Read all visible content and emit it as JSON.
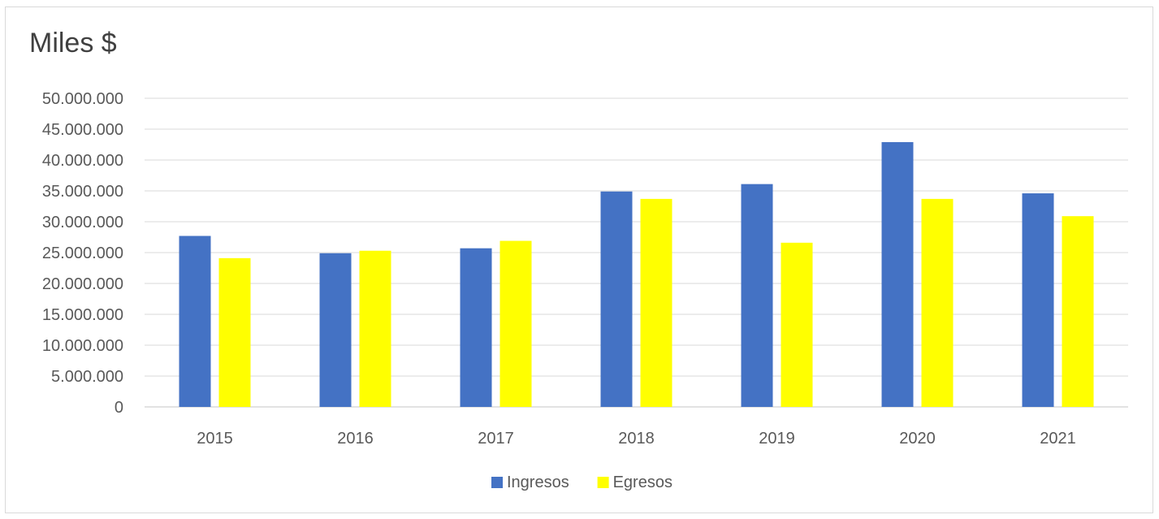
{
  "colors": {
    "ingresos": "#4472c4",
    "egresos": "#ffff00",
    "grid": "#d9d9d9",
    "text": "#595959"
  },
  "chart_data": {
    "type": "bar",
    "title": "Miles $",
    "categories": [
      "2015",
      "2016",
      "2017",
      "2018",
      "2019",
      "2020",
      "2021"
    ],
    "series": [
      {
        "name": "Ingresos",
        "color": "#4472c4",
        "values": [
          27700000,
          24900000,
          25700000,
          34900000,
          36100000,
          42900000,
          34600000
        ]
      },
      {
        "name": "Egresos",
        "color": "#ffff00",
        "values": [
          24100000,
          25300000,
          26900000,
          33700000,
          26600000,
          33700000,
          30900000
        ]
      }
    ],
    "y_ticks": [
      "0",
      "5.000.000",
      "10.000.000",
      "15.000.000",
      "20.000.000",
      "25.000.000",
      "30.000.000",
      "35.000.000",
      "40.000.000",
      "45.000.000",
      "50.000.000"
    ],
    "ylim": [
      0,
      50000000
    ],
    "xlabel": "",
    "ylabel": "",
    "grid": true,
    "legend_position": "bottom"
  }
}
